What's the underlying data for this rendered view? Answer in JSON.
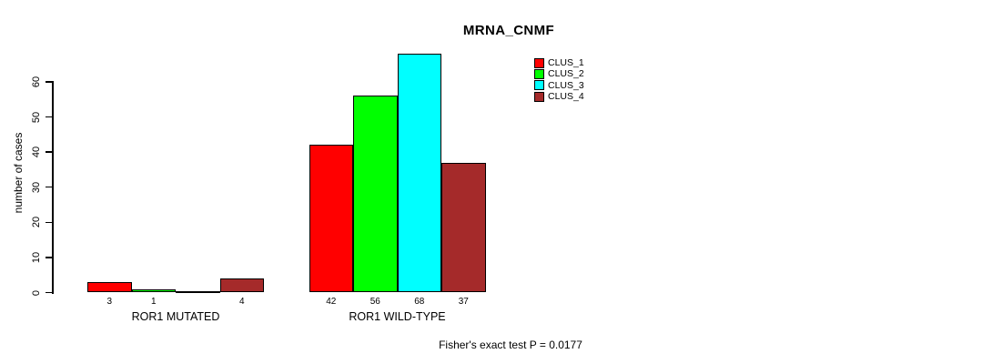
{
  "chart_data": {
    "type": "bar",
    "title": "MRNA_CNMF",
    "ylabel": "number of cases",
    "categories": [
      "ROR1 MUTATED",
      "ROR1 WILD-TYPE"
    ],
    "series": [
      {
        "name": "CLUS_1",
        "color": "#ff0000",
        "values": [
          3,
          42
        ]
      },
      {
        "name": "CLUS_2",
        "color": "#00ff00",
        "values": [
          1,
          56
        ]
      },
      {
        "name": "CLUS_3",
        "color": "#00ffff",
        "values": [
          0,
          68
        ]
      },
      {
        "name": "CLUS_4",
        "color": "#a52a2a",
        "values": [
          4,
          37
        ]
      }
    ],
    "value_labels": [
      [
        "3",
        "1",
        "",
        "4"
      ],
      [
        "42",
        "56",
        "68",
        "37"
      ]
    ],
    "yticks": [
      0,
      10,
      20,
      30,
      40,
      50,
      60
    ],
    "ylim": [
      0,
      68.9
    ],
    "grid": false,
    "legend_position": "top-right",
    "legend_entries": [
      "CLUS_1",
      "CLUS_2",
      "CLUS_3",
      "CLUS_4"
    ],
    "annotation": "Fisher's exact test P = 0.0177"
  }
}
